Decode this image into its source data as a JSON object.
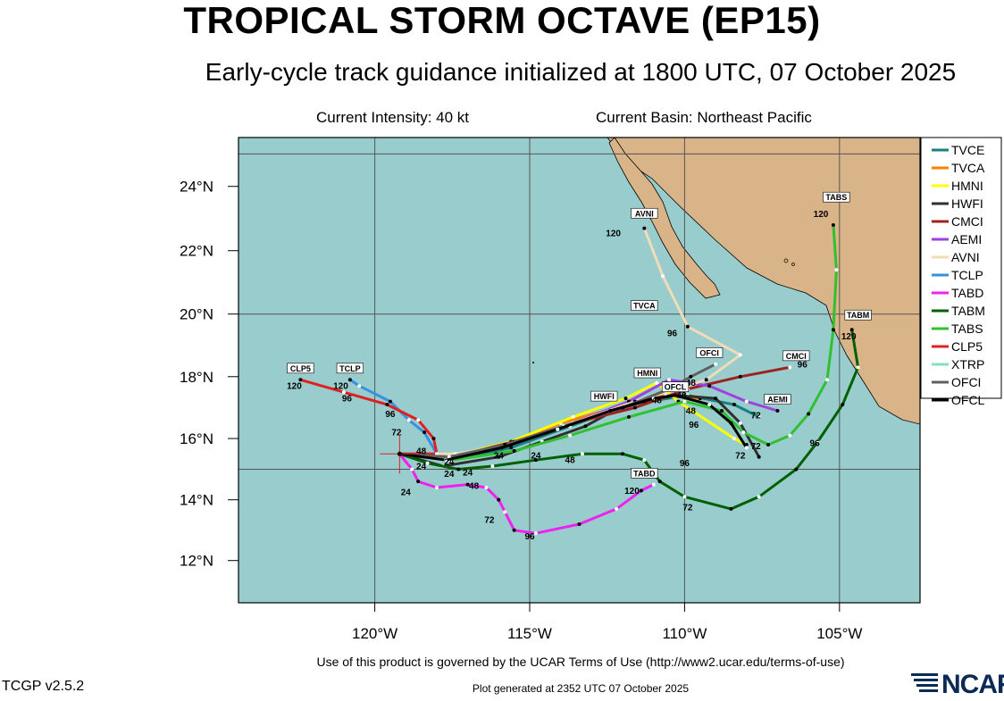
{
  "header": {
    "title": "TROPICAL STORM OCTAVE (EP15)",
    "subtitle": "Early-cycle track guidance initialized at 1800 UTC, 07 October 2025",
    "intensity": "Current Intensity: 40 kt",
    "basin": "Current Basin: Northeast Pacific"
  },
  "footer": {
    "terms": "Use of this product is governed by the UCAR Terms of Use (http://www2.ucar.edu/terms-of-use)",
    "version": "TCGP v2.5.2",
    "generated": "Plot generated at 2352 UTC   07 October 2025",
    "logo_text": "NCAR"
  },
  "colors": {
    "ocean": "#99cccc",
    "land": "#d8b488",
    "grid": "#555555"
  },
  "chart_data": {
    "type": "map",
    "projection": "mercator",
    "lon_range": [
      -124.4,
      -102.4
    ],
    "lat_range": [
      10.6,
      25.5
    ],
    "x_ticks": [
      {
        "lon": -120,
        "label": "120°W"
      },
      {
        "lon": -115,
        "label": "115°W"
      },
      {
        "lon": -110,
        "label": "110°W"
      },
      {
        "lon": -105,
        "label": "105°W"
      }
    ],
    "y_ticks": [
      {
        "lat": 12,
        "label": "12°N"
      },
      {
        "lat": 14,
        "label": "14°N"
      },
      {
        "lat": 16,
        "label": "16°N"
      },
      {
        "lat": 18,
        "label": "18°N"
      },
      {
        "lat": 20,
        "label": "20°N"
      },
      {
        "lat": 22,
        "label": "22°N"
      },
      {
        "lat": 24,
        "label": "24°N"
      }
    ],
    "grid_lons": [
      -120,
      -115,
      -110,
      -105
    ],
    "grid_lats": [
      15,
      20,
      25
    ],
    "storm_position": {
      "lon": -119.2,
      "lat": 15.5
    },
    "legend_position": "right",
    "tracks": [
      {
        "name": "TVCE",
        "color": "#1a7f80",
        "points": [
          [
            -119.2,
            15.5
          ],
          [
            -117.5,
            15.3
          ],
          [
            -115.6,
            15.7
          ],
          [
            -113.7,
            16.4
          ],
          [
            -111.8,
            17.1
          ],
          [
            -109.9,
            17.4
          ],
          [
            -108.4,
            17.1
          ],
          [
            -107.6,
            16.7
          ]
        ],
        "hour_labels": [
          [
            "24",
            -117.6,
            15.15
          ],
          [
            "48",
            -110.1,
            17.3
          ],
          [
            "72",
            -107.7,
            16.65
          ]
        ]
      },
      {
        "name": "TVCA",
        "color": "#ff8000",
        "points": [
          [
            -119.2,
            15.5
          ],
          [
            -117.6,
            15.4
          ],
          [
            -115.8,
            15.8
          ],
          [
            -114.0,
            16.5
          ],
          [
            -112.2,
            17.0
          ],
          [
            -110.6,
            17.4
          ],
          [
            -109.5,
            17.3
          ]
        ],
        "hour_labels": []
      },
      {
        "name": "HMNI",
        "color": "#ffff00",
        "points": [
          [
            -119.2,
            15.5
          ],
          [
            -117.6,
            15.4
          ],
          [
            -115.6,
            15.9
          ],
          [
            -113.6,
            16.7
          ],
          [
            -111.9,
            17.3
          ],
          [
            -110.9,
            17.8
          ],
          [
            -110.2,
            17.2
          ],
          [
            -108.4,
            16.0
          ],
          [
            -108.0,
            15.8
          ]
        ],
        "hour_labels": []
      },
      {
        "name": "HWFI",
        "color": "#303030",
        "points": [
          [
            -119.2,
            15.5
          ],
          [
            -117.8,
            15.1
          ],
          [
            -116.0,
            15.4
          ],
          [
            -114.6,
            15.9
          ],
          [
            -113.2,
            16.4
          ],
          [
            -112.3,
            16.9
          ],
          [
            -111.3,
            17.2
          ],
          [
            -110.3,
            17.4
          ],
          [
            -109.0,
            17.3
          ],
          [
            -108.2,
            16.5
          ],
          [
            -107.6,
            15.4
          ]
        ],
        "hour_labels": []
      },
      {
        "name": "CMCI",
        "color": "#a02020",
        "points": [
          [
            -119.2,
            15.5
          ],
          [
            -117.5,
            15.4
          ],
          [
            -115.5,
            15.9
          ],
          [
            -113.6,
            16.5
          ],
          [
            -111.6,
            17.0
          ],
          [
            -109.9,
            17.6
          ],
          [
            -108.2,
            18.0
          ],
          [
            -106.6,
            18.3
          ]
        ],
        "hour_labels": []
      },
      {
        "name": "AEMI",
        "color": "#a040e0",
        "points": [
          [
            -119.2,
            15.5
          ],
          [
            -117.5,
            15.4
          ],
          [
            -115.6,
            15.8
          ],
          [
            -113.6,
            16.5
          ],
          [
            -111.8,
            17.2
          ],
          [
            -110.5,
            17.9
          ],
          [
            -109.2,
            17.7
          ],
          [
            -108.0,
            17.2
          ],
          [
            -107.0,
            16.9
          ]
        ],
        "hour_labels": []
      },
      {
        "name": "AVNI",
        "color": "#f2dcb8",
        "points": [
          [
            -119.2,
            15.5
          ],
          [
            -117.4,
            15.5
          ],
          [
            -115.6,
            15.8
          ],
          [
            -113.6,
            16.5
          ],
          [
            -111.6,
            17.2
          ],
          [
            -110.3,
            17.6
          ],
          [
            -109.3,
            17.9
          ],
          [
            -108.2,
            18.7
          ],
          [
            -109.9,
            19.6
          ],
          [
            -110.7,
            21.2
          ],
          [
            -111.3,
            22.7
          ]
        ],
        "hour_labels": [
          [
            "96",
            -110.4,
            19.3
          ],
          [
            "120",
            -112.3,
            22.45
          ]
        ]
      },
      {
        "name": "TCLP",
        "color": "#3a90e0",
        "points": [
          [
            -119.2,
            15.5
          ],
          [
            -118.0,
            15.5
          ],
          [
            -118.4,
            16.2
          ],
          [
            -118.9,
            16.6
          ],
          [
            -119.5,
            17.2
          ],
          [
            -120.5,
            17.7
          ],
          [
            -120.8,
            17.9
          ]
        ],
        "hour_labels": [
          [
            "72",
            -119.3,
            16.1
          ],
          [
            "96",
            -119.5,
            16.7
          ],
          [
            "120",
            -121.1,
            17.6
          ]
        ]
      },
      {
        "name": "TABD",
        "color": "#f020f0",
        "points": [
          [
            -119.2,
            15.5
          ],
          [
            -118.8,
            15.0
          ],
          [
            -118.6,
            14.6
          ],
          [
            -118.0,
            14.4
          ],
          [
            -117.0,
            14.5
          ],
          [
            -116.4,
            14.4
          ],
          [
            -116.0,
            14.0
          ],
          [
            -115.8,
            13.6
          ],
          [
            -115.5,
            13.0
          ],
          [
            -114.8,
            12.9
          ],
          [
            -113.4,
            13.2
          ],
          [
            -112.2,
            13.7
          ],
          [
            -111.4,
            14.3
          ],
          [
            -111.0,
            14.5
          ]
        ],
        "hour_labels": [
          [
            "24",
            -119.0,
            14.15
          ],
          [
            "48",
            -116.8,
            14.35
          ],
          [
            "72",
            -116.3,
            13.25
          ],
          [
            "96",
            -115.0,
            12.7
          ],
          [
            "120",
            -111.7,
            14.2
          ]
        ]
      },
      {
        "name": "TABM",
        "color": "#006000",
        "points": [
          [
            -119.2,
            15.5
          ],
          [
            -118.3,
            15.2
          ],
          [
            -117.3,
            15.0
          ],
          [
            -116.2,
            15.1
          ],
          [
            -114.8,
            15.3
          ],
          [
            -113.3,
            15.5
          ],
          [
            -112.0,
            15.5
          ],
          [
            -111.3,
            15.3
          ],
          [
            -110.8,
            14.6
          ],
          [
            -110.0,
            14.1
          ],
          [
            -108.5,
            13.7
          ],
          [
            -107.6,
            14.1
          ],
          [
            -106.4,
            15.0
          ],
          [
            -105.7,
            15.9
          ],
          [
            -104.9,
            17.1
          ],
          [
            -104.4,
            18.3
          ],
          [
            -104.6,
            19.5
          ]
        ],
        "hour_labels": [
          [
            "48",
            -113.7,
            15.2
          ],
          [
            "72",
            -109.9,
            13.65
          ],
          [
            "96",
            -105.8,
            15.75
          ],
          [
            "120",
            -104.7,
            19.2
          ]
        ]
      },
      {
        "name": "TABS",
        "color": "#30c030",
        "points": [
          [
            -119.2,
            15.5
          ],
          [
            -117.5,
            15.3
          ],
          [
            -115.5,
            15.6
          ],
          [
            -113.7,
            16.1
          ],
          [
            -111.8,
            16.7
          ],
          [
            -110.0,
            17.2
          ],
          [
            -108.8,
            16.9
          ],
          [
            -108.1,
            16.2
          ],
          [
            -107.3,
            15.8
          ],
          [
            -106.6,
            16.1
          ],
          [
            -106.0,
            16.8
          ],
          [
            -105.4,
            17.9
          ],
          [
            -105.2,
            19.5
          ],
          [
            -105.1,
            21.4
          ],
          [
            -105.2,
            22.8
          ]
        ],
        "hour_labels": [
          [
            "72",
            -107.7,
            15.65
          ],
          [
            "96",
            -106.2,
            18.3
          ],
          [
            "120",
            -105.6,
            23.05
          ]
        ]
      },
      {
        "name": "CLP5",
        "color": "#e02020",
        "points": [
          [
            -119.2,
            15.5
          ],
          [
            -118.0,
            15.5
          ],
          [
            -118.1,
            16.0
          ],
          [
            -118.6,
            16.6
          ],
          [
            -119.6,
            17.1
          ],
          [
            -121.0,
            17.5
          ],
          [
            -122.4,
            17.9
          ]
        ],
        "hour_labels": [
          [
            "96",
            -120.9,
            17.2
          ],
          [
            "120",
            -122.6,
            17.6
          ]
        ]
      },
      {
        "name": "XTRP",
        "color": "#80e0c0",
        "points": [
          [
            -119.2,
            15.5
          ],
          [
            -117.6,
            15.3
          ]
        ],
        "hour_labels": []
      },
      {
        "name": "OFCI",
        "color": "#606060",
        "points": [
          [
            -119.2,
            15.5
          ],
          [
            -117.6,
            15.4
          ],
          [
            -115.8,
            15.8
          ],
          [
            -113.9,
            16.4
          ],
          [
            -112.0,
            17.0
          ],
          [
            -110.5,
            17.6
          ],
          [
            -109.8,
            18.0
          ],
          [
            -109.0,
            18.4
          ]
        ],
        "hour_labels": []
      },
      {
        "name": "OFCL",
        "color": "#000000",
        "points": [
          [
            -119.2,
            15.5
          ],
          [
            -117.7,
            15.3
          ],
          [
            -115.9,
            15.7
          ],
          [
            -114.1,
            16.3
          ],
          [
            -112.4,
            16.9
          ],
          [
            -111.0,
            17.3
          ],
          [
            -110.3,
            17.4
          ],
          [
            -109.2,
            17.1
          ],
          [
            -108.5,
            16.5
          ],
          [
            -108.0,
            15.7
          ]
        ],
        "hour_labels": [
          [
            "48",
            -110.9,
            17.15
          ],
          [
            "96",
            -109.7,
            16.35
          ]
        ]
      }
    ],
    "start_labels": [
      {
        "text": "CLP5",
        "lon": -122.4,
        "lat": 18.2
      },
      {
        "text": "TCLP",
        "lon": -120.8,
        "lat": 18.2
      },
      {
        "text": "AVNI",
        "lon": -111.3,
        "lat": 23.1
      },
      {
        "text": "TVCA",
        "lon": -111.3,
        "lat": 20.2
      },
      {
        "text": "OFCI",
        "lon": -109.2,
        "lat": 18.7
      },
      {
        "text": "CMCI",
        "lon": -106.4,
        "lat": 18.6
      },
      {
        "text": "HMNI",
        "lon": -111.2,
        "lat": 18.05
      },
      {
        "text": "OFCL",
        "lon": -110.3,
        "lat": 17.6
      },
      {
        "text": "HWFI",
        "lon": -112.6,
        "lat": 17.3
      },
      {
        "text": "AEMI",
        "lon": -107.0,
        "lat": 17.2
      },
      {
        "text": "TABS",
        "lon": -105.1,
        "lat": 23.6
      },
      {
        "text": "TABM",
        "lon": -104.4,
        "lat": 19.9
      },
      {
        "text": "TABD",
        "lon": -111.3,
        "lat": 14.8
      }
    ],
    "hour_labels_misc": [
      {
        "text": "24",
        "lon": -116.0,
        "lat": 15.35
      },
      {
        "text": "24",
        "lon": -114.8,
        "lat": 15.35
      },
      {
        "text": "24",
        "lon": -117.0,
        "lat": 14.8
      },
      {
        "text": "24",
        "lon": -117.6,
        "lat": 14.75
      },
      {
        "text": "24",
        "lon": -118.5,
        "lat": 15.0
      },
      {
        "text": "48",
        "lon": -118.5,
        "lat": 15.5
      },
      {
        "text": "48",
        "lon": -109.8,
        "lat": 17.7
      },
      {
        "text": "96",
        "lon": -110.0,
        "lat": 15.1
      },
      {
        "text": "72",
        "lon": -108.2,
        "lat": 15.35
      },
      {
        "text": "48",
        "lon": -109.8,
        "lat": 16.8
      }
    ]
  }
}
